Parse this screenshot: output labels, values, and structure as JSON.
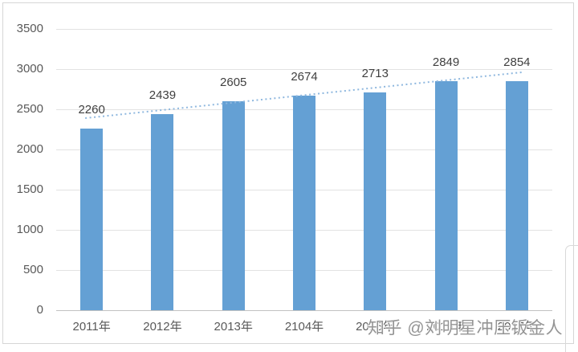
{
  "chart_data": {
    "type": "bar",
    "title": "",
    "xlabel": "",
    "ylabel": "",
    "categories": [
      "2011年",
      "2012年",
      "2013年",
      "2104年",
      "2015年",
      "2016年",
      "2017年"
    ],
    "values": [
      2260,
      2439,
      2605,
      2674,
      2713,
      2849,
      2854
    ],
    "y_ticks": [
      0,
      500,
      1000,
      1500,
      2000,
      2500,
      3000,
      3500
    ],
    "ylim": [
      0,
      3500
    ],
    "grid": true,
    "legend": "none",
    "bar_color": "#64a0d4",
    "axis_text_color": "#595959",
    "value_label_color": "#3f3f3f",
    "trendline": {
      "style": "dotted",
      "color": "#8fb8df",
      "start_value": 2390,
      "end_value": 2960
    }
  },
  "watermark": {
    "text": "知乎 @刘明星冲压钣金人"
  }
}
